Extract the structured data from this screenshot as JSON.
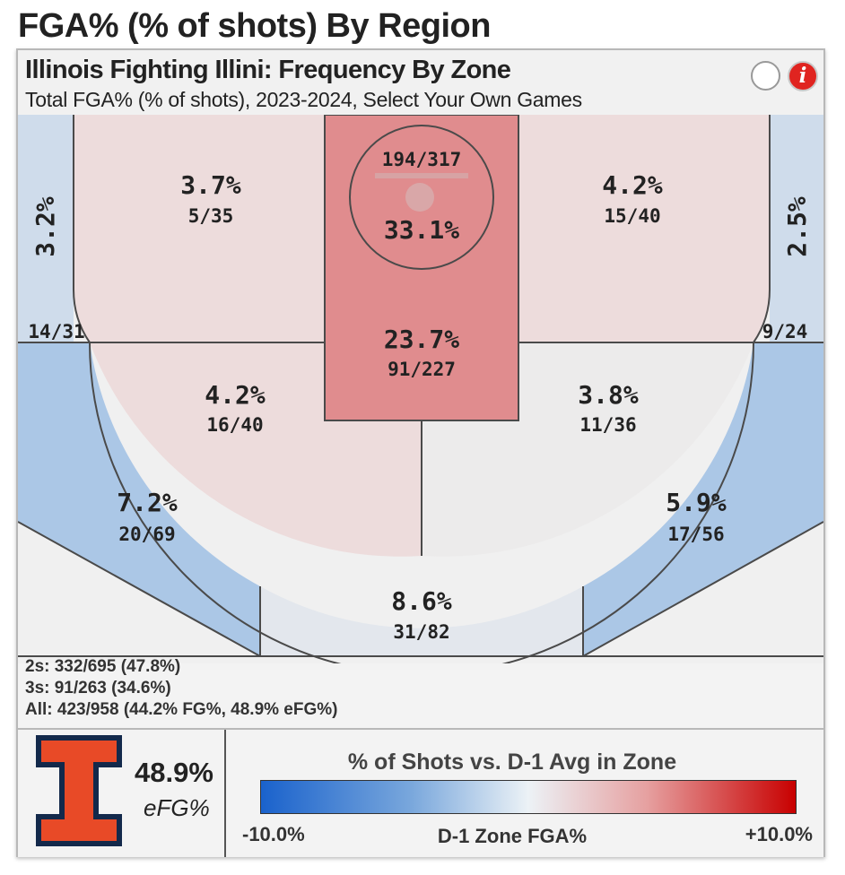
{
  "page_title": "FGA% (% of shots) By Region",
  "card": {
    "title": "Illinois Fighting Illini: Frequency By Zone",
    "subtitle": "Total FGA% (% of shots), 2023-2024, Select Your Own Games",
    "info_icon": "i"
  },
  "zones": {
    "rim": {
      "pct": "33.1%",
      "frac": "194/317",
      "color": "#e08c8e"
    },
    "paint": {
      "pct": "23.7%",
      "frac": "91/227",
      "color": "#e08c8e"
    },
    "midrange_left_baseline": {
      "pct": "3.7%",
      "frac": "5/35",
      "color": "#eddcdc"
    },
    "midrange_right_baseline": {
      "pct": "4.2%",
      "frac": "15/40",
      "color": "#eddcdc"
    },
    "midrange_left_elbow": {
      "pct": "4.2%",
      "frac": "16/40",
      "color": "#eddcdc"
    },
    "midrange_right_elbow": {
      "pct": "3.8%",
      "frac": "11/36",
      "color": "#ecebeb"
    },
    "corner3_left": {
      "pct": "3.2%",
      "frac": "14/31",
      "color": "#cfdceb"
    },
    "corner3_right": {
      "pct": "2.5%",
      "frac": "9/24",
      "color": "#cfdceb"
    },
    "wing3_left": {
      "pct": "7.2%",
      "frac": "20/69",
      "color": "#abc7e6"
    },
    "wing3_right": {
      "pct": "5.9%",
      "frac": "17/56",
      "color": "#abc7e6"
    },
    "top3": {
      "pct": "8.6%",
      "frac": "31/82",
      "color": "#e3e7ed"
    }
  },
  "summary": {
    "twos": "2s: 332/695 (47.8%)",
    "threes": "3s: 91/263 (34.6%)",
    "all": "All: 423/958 (44.2% FG%, 48.9% eFG%)"
  },
  "team": {
    "logo_letter": "I",
    "efg_value": "48.9%",
    "efg_label": "eFG%",
    "primary_color": "#e84a27",
    "secondary_color": "#13294b"
  },
  "legend": {
    "title": "% of Shots vs. D-1 Avg in Zone",
    "min_label": "-10.0%",
    "mid_label": "D-1 Zone FGA%",
    "max_label": "+10.0%",
    "low_color": "#1a62cc",
    "mid_color": "#ecf2f6",
    "high_color": "#c80000"
  }
}
